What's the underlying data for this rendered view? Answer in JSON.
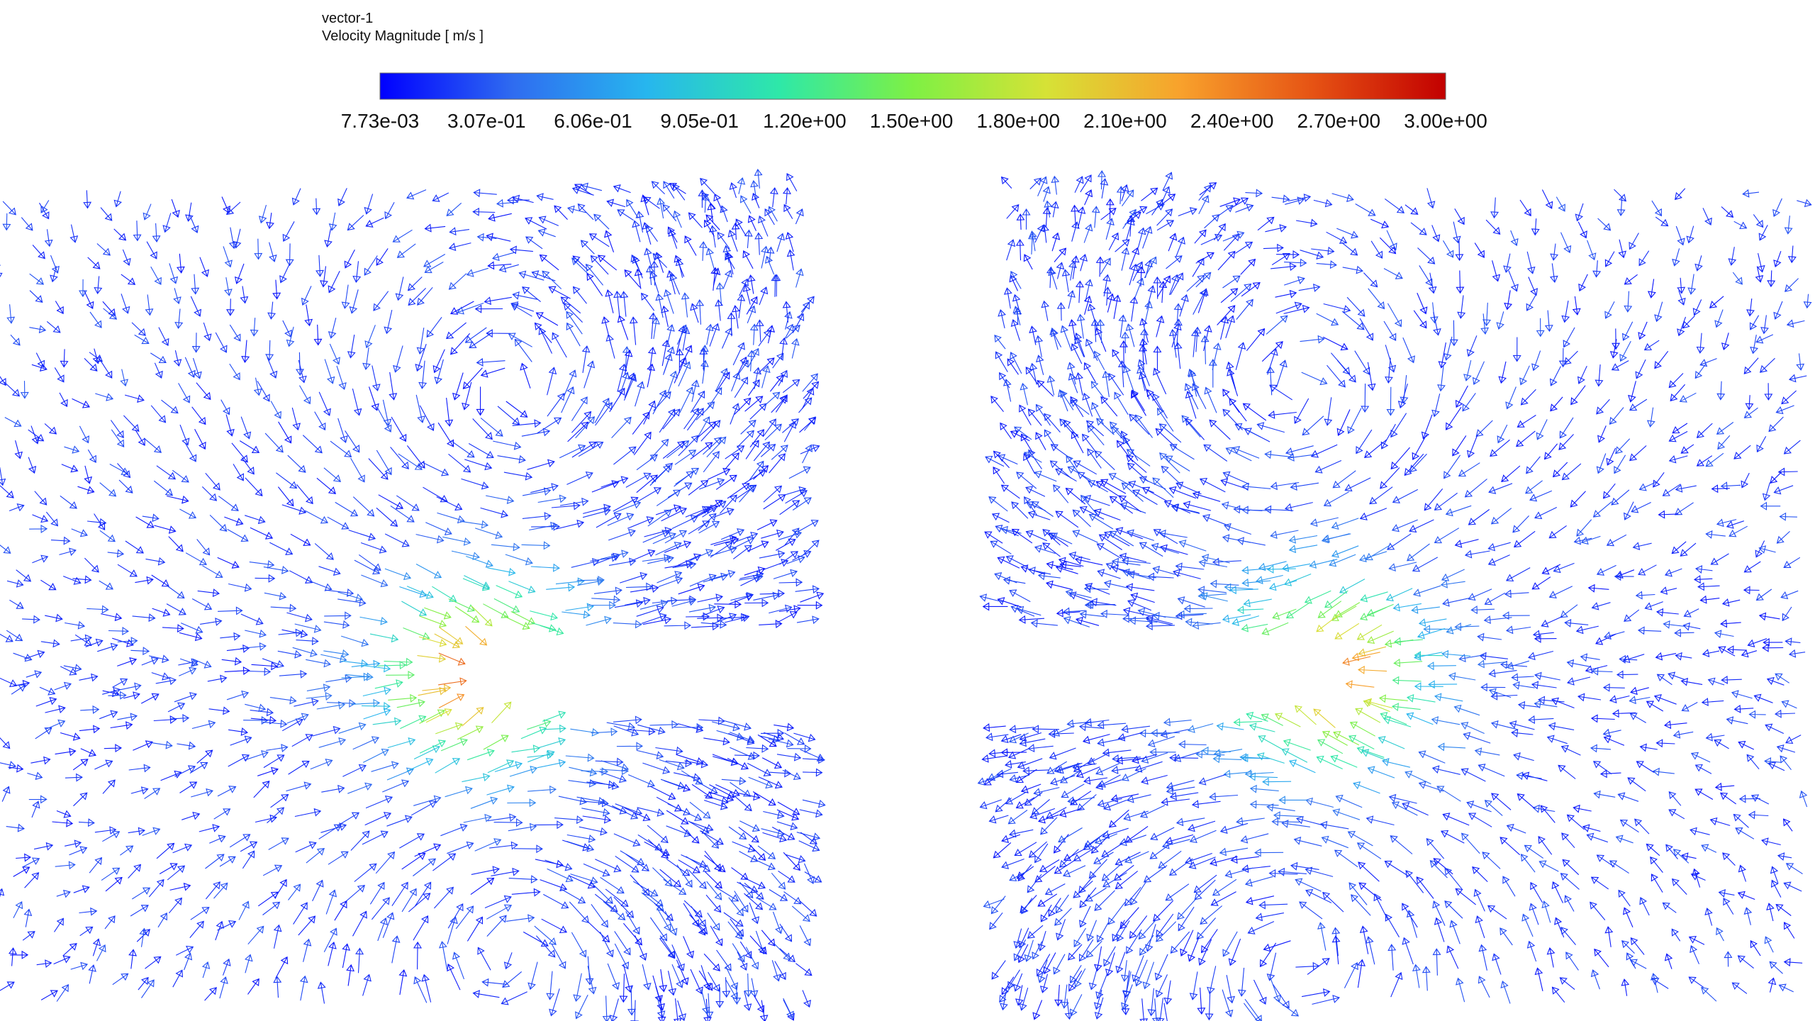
{
  "legend": {
    "title": "vector-1",
    "subtitle": "Velocity Magnitude [ m/s ]",
    "range": [
      0.00773,
      3.0
    ],
    "ticks": [
      {
        "value": 0.00773,
        "label": "7.73e-03"
      },
      {
        "value": 0.307,
        "label": "3.07e-01"
      },
      {
        "value": 0.606,
        "label": "6.06e-01"
      },
      {
        "value": 0.905,
        "label": "9.05e-01"
      },
      {
        "value": 1.2,
        "label": "1.20e+00"
      },
      {
        "value": 1.5,
        "label": "1.50e+00"
      },
      {
        "value": 1.8,
        "label": "1.80e+00"
      },
      {
        "value": 2.1,
        "label": "2.10e+00"
      },
      {
        "value": 2.4,
        "label": "2.40e+00"
      },
      {
        "value": 2.7,
        "label": "2.70e+00"
      },
      {
        "value": 3.0,
        "label": "3.00e+00"
      }
    ],
    "colormap": [
      "#0000ff",
      "#2f6cf0",
      "#27b6ee",
      "#2ee8a8",
      "#7ef044",
      "#d6e236",
      "#f8a22c",
      "#e65314",
      "#c20000"
    ]
  }
}
